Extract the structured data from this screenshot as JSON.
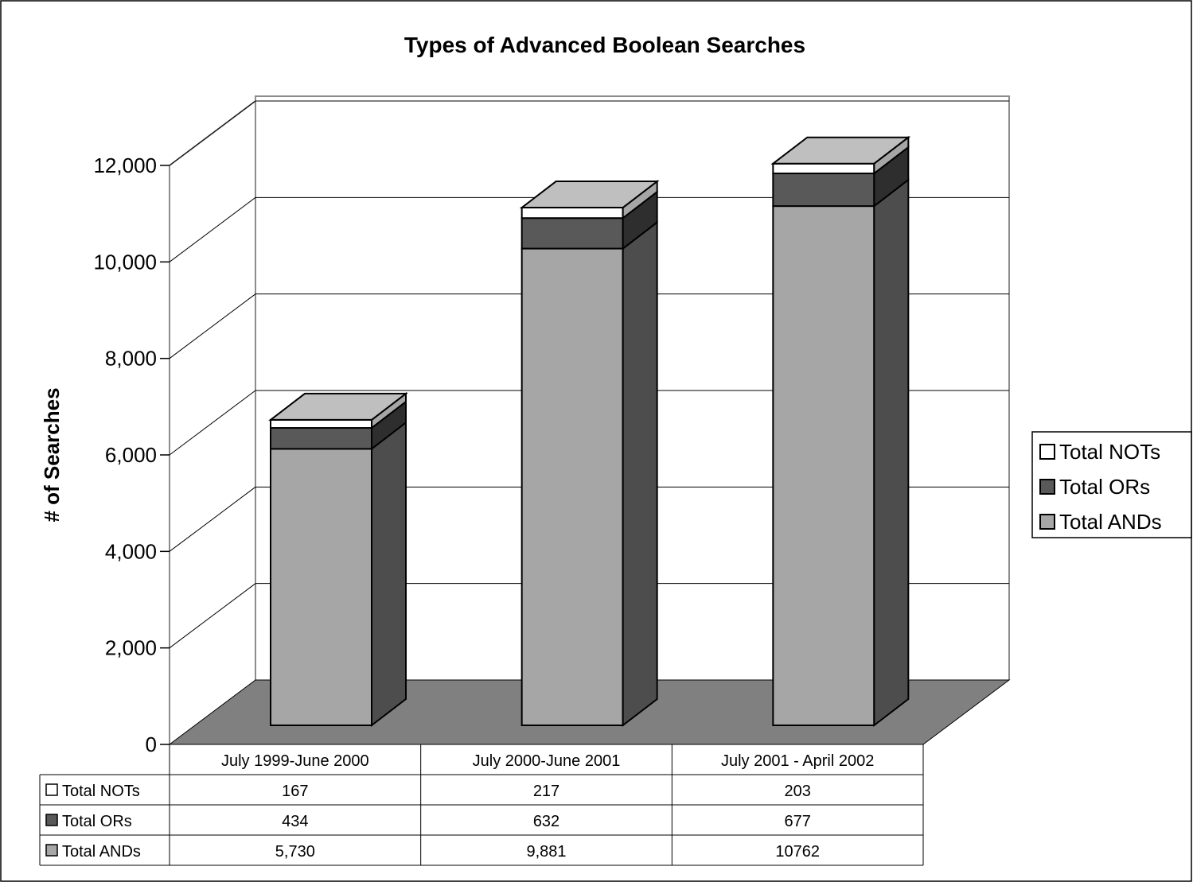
{
  "chart_data": {
    "type": "bar",
    "stacked": true,
    "three_d": true,
    "title": "Types of Advanced Boolean Searches",
    "xlabel": "",
    "ylabel": "# of Searches",
    "ylim": [
      0,
      12000
    ],
    "yticks": [
      0,
      2000,
      4000,
      6000,
      8000,
      10000,
      12000
    ],
    "ytick_labels": [
      "0",
      "2,000",
      "4,000",
      "6,000",
      "8,000",
      "10,000",
      "12,000"
    ],
    "grid": true,
    "legend_position": "right",
    "categories": [
      "July 1999-June 2000",
      "July 2000-June 2001",
      "July 2001 - April 2002"
    ],
    "series": [
      {
        "name": "Total ANDs",
        "values": [
          5730,
          9881,
          10762
        ],
        "display": [
          "5,730",
          "9,881",
          "10762"
        ],
        "color": "#a6a6a6"
      },
      {
        "name": "Total ORs",
        "values": [
          434,
          632,
          677
        ],
        "display": [
          "434",
          "632",
          "677"
        ],
        "color": "#595959"
      },
      {
        "name": "Total NOTs",
        "values": [
          167,
          217,
          203
        ],
        "display": [
          "167",
          "217",
          "203"
        ],
        "color": "#ffffff"
      }
    ],
    "legend_order": [
      "Total NOTs",
      "Total ORs",
      "Total ANDs"
    ],
    "table_row_order": [
      "Total NOTs",
      "Total ORs",
      "Total ANDs"
    ]
  },
  "colors": {
    "floor": "#808080",
    "side_shade": "#4d4d4d",
    "top_shade": "#bfbfbf",
    "wall_line": "#8c8c8c"
  }
}
